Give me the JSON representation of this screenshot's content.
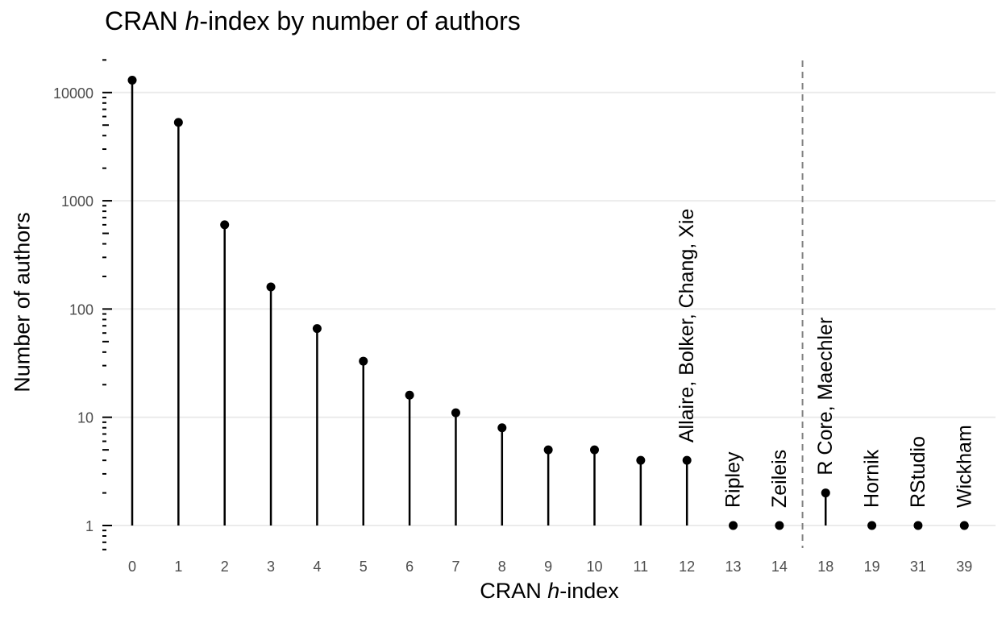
{
  "chart_data": {
    "type": "lollipop",
    "title_prefix": "CRAN ",
    "title_italic": "h",
    "title_suffix": "-index by number of authors",
    "xlabel_prefix": "CRAN ",
    "xlabel_italic": "h",
    "xlabel_suffix": "-index",
    "ylabel": "Number of authors",
    "y_scale": "log10",
    "ylim": [
      0.6,
      20000
    ],
    "y_ticks": [
      1,
      10,
      100,
      1000,
      10000
    ],
    "y_tick_labels": [
      "1",
      "10",
      "100",
      "1000",
      "10000"
    ],
    "x_categorical": true,
    "categories": [
      "0",
      "1",
      "2",
      "3",
      "4",
      "5",
      "6",
      "7",
      "8",
      "9",
      "10",
      "11",
      "12",
      "13",
      "14",
      "18",
      "19",
      "31",
      "39"
    ],
    "values": [
      13000,
      5300,
      600,
      160,
      66,
      33,
      16,
      11,
      8,
      5,
      5,
      4,
      4,
      1,
      1,
      2,
      1,
      1,
      1
    ],
    "annotations": [
      {
        "category": "12",
        "text": "Allaire, Bolker, Chang, Xie"
      },
      {
        "category": "13",
        "text": "Ripley"
      },
      {
        "category": "14",
        "text": "Zeileis"
      },
      {
        "category": "18",
        "text": "R Core, Maechler"
      },
      {
        "category": "19",
        "text": "Hornik"
      },
      {
        "category": "31",
        "text": "RStudio"
      },
      {
        "category": "39",
        "text": "Wickham"
      }
    ],
    "vline_after_category": "14",
    "vline_style": "dashed",
    "grid": "horizontal-major",
    "legend": "none",
    "colors": {
      "point": "#000000",
      "grid": "#ebebeb",
      "vline": "#7f7f7f",
      "tick_text": "#4d4d4d"
    }
  }
}
